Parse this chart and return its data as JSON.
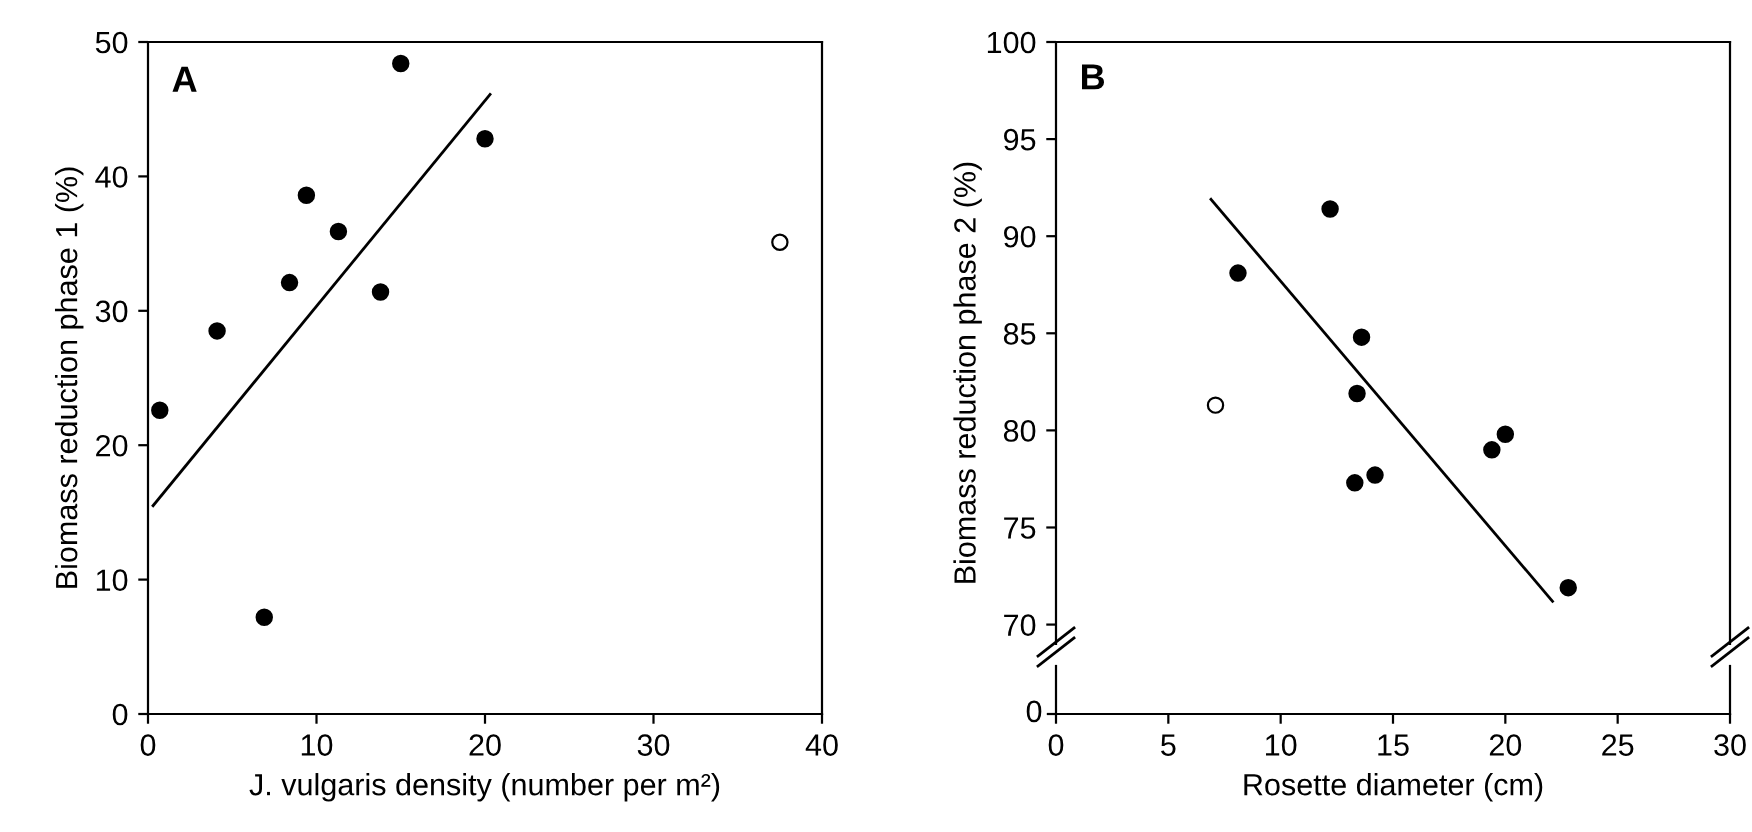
{
  "chart_data": [
    {
      "type": "scatter",
      "title": "A",
      "xlabel": "J. vulgaris density (number per m²)",
      "ylabel": "Biomass reduction phase 1 (%)",
      "xlim": [
        0,
        40
      ],
      "xticks": [
        0,
        10,
        20,
        30,
        40
      ],
      "ylim": [
        0,
        50
      ],
      "yticks": [
        0,
        10,
        20,
        30,
        40,
        50
      ],
      "grid": false,
      "legend": false,
      "series": [
        {
          "color": "#000000",
          "marker": "circle",
          "x": [
            0.7,
            4.1,
            6.9,
            8.4,
            9.4,
            11.3,
            13.8,
            15.0,
            20.0
          ],
          "values": [
            22.6,
            28.5,
            7.2,
            32.1,
            38.6,
            35.9,
            31.4,
            48.4,
            42.8
          ]
        },
        {
          "color": "#ffffff",
          "marker": "circle",
          "x": [
            37.5
          ],
          "values": [
            35.1
          ]
        },
        {
          "type": "line",
          "color": "#000000",
          "x": [
            0.3,
            20.3
          ],
          "values": [
            15.5,
            46.1
          ]
        }
      ]
    },
    {
      "type": "scatter",
      "title": "B",
      "xlabel": "Rosette diameter (cm)",
      "ylabel": "Biomass reduction phase 2 (%)",
      "xlim": [
        0,
        30
      ],
      "xticks": [
        0,
        5,
        10,
        15,
        20,
        25,
        30
      ],
      "ylim": [
        69,
        100
      ],
      "yticks": [
        70,
        75,
        80,
        85,
        90,
        95,
        100
      ],
      "grid": false,
      "legend": false,
      "annotations": [
        "0"
      ],
      "series": [
        {
          "color": "#000000",
          "marker": "circle",
          "x": [
            8.1,
            12.2,
            13.6,
            13.4,
            13.3,
            14.2,
            19.4,
            20.0,
            22.8
          ],
          "values": [
            88.1,
            91.4,
            84.8,
            81.9,
            77.3,
            77.7,
            79.0,
            79.8,
            71.9
          ]
        },
        {
          "color": "#ffffff",
          "marker": "circle",
          "x": [
            7.1
          ],
          "values": [
            81.3
          ]
        },
        {
          "type": "line",
          "color": "#000000",
          "x": [
            6.9,
            22.1
          ],
          "values": [
            91.9,
            71.2
          ]
        }
      ]
    }
  ]
}
